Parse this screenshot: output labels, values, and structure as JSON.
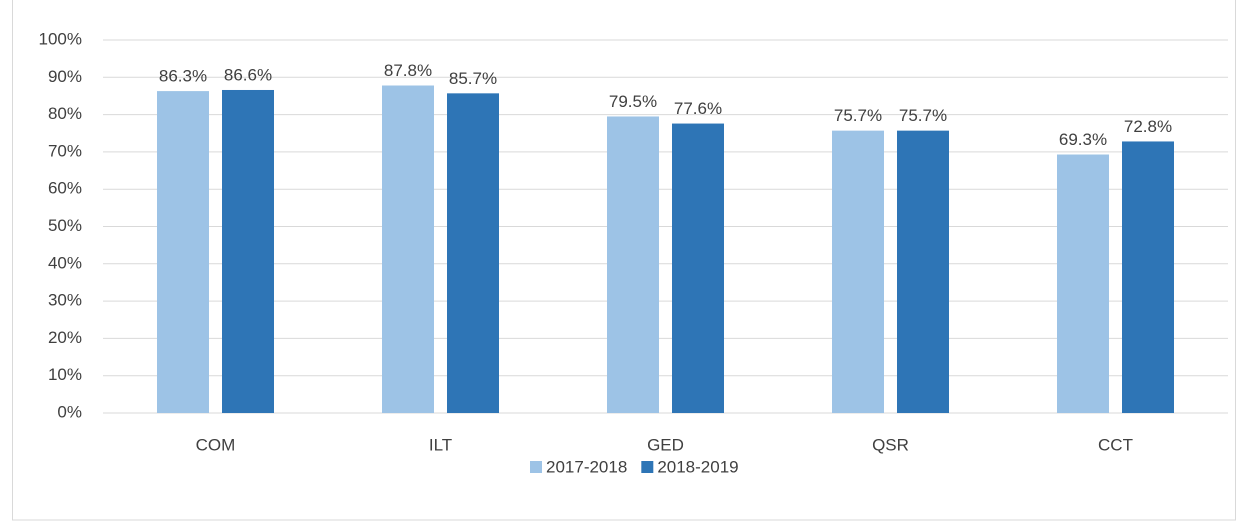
{
  "chart_data": {
    "type": "bar",
    "categories": [
      "COM",
      "ILT",
      "GED",
      "QSR",
      "CCT"
    ],
    "series": [
      {
        "name": "2017-2018",
        "color": "#9dc3e6",
        "values": [
          86.3,
          87.8,
          79.5,
          75.7,
          69.3
        ],
        "value_labels": [
          "86.3%",
          "87.8%",
          "79.5%",
          "75.7%",
          "69.3%"
        ]
      },
      {
        "name": "2018-2019",
        "color": "#2e75b6",
        "values": [
          86.6,
          85.7,
          77.6,
          75.7,
          72.8
        ],
        "value_labels": [
          "86.6%",
          "85.7%",
          "77.6%",
          "75.7%",
          "72.8%"
        ]
      }
    ],
    "ylim": [
      0,
      100
    ],
    "yticks": [
      {
        "value": 0,
        "label": "0%"
      },
      {
        "value": 10,
        "label": "10%"
      },
      {
        "value": 20,
        "label": "20%"
      },
      {
        "value": 30,
        "label": "30%"
      },
      {
        "value": 40,
        "label": "40%"
      },
      {
        "value": 50,
        "label": "50%"
      },
      {
        "value": 60,
        "label": "60%"
      },
      {
        "value": 70,
        "label": "70%"
      },
      {
        "value": 80,
        "label": "80%"
      },
      {
        "value": 90,
        "label": "90%"
      },
      {
        "value": 100,
        "label": "100%"
      }
    ],
    "grid": true,
    "legend": "bottom"
  }
}
